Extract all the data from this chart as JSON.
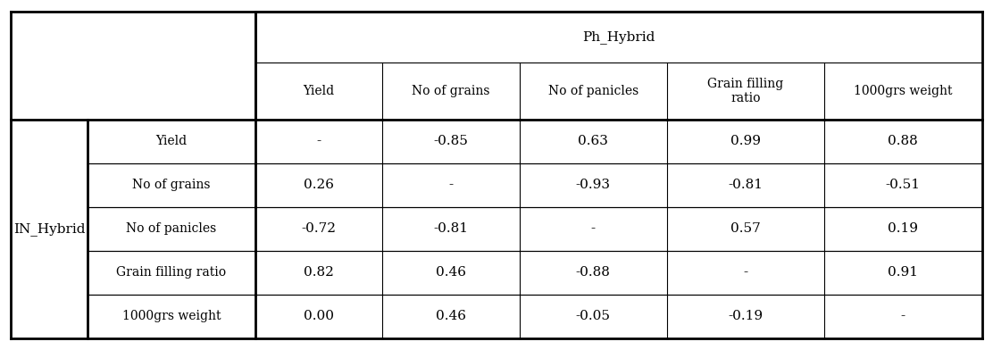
{
  "title_col": "Ph_Hybrid",
  "title_row": "IN_Hybrid",
  "col_headers": [
    "Yield",
    "No of grains",
    "No of panicles",
    "Grain filling\nratio",
    "1000grs weight"
  ],
  "row_headers": [
    "Yield",
    "No of grains",
    "No of panicles",
    "Grain filling ratio",
    "1000grs weight"
  ],
  "cell_data": [
    [
      "-",
      "-0.85",
      "0.63",
      "0.99",
      "0.88"
    ],
    [
      "0.26",
      "-",
      "-0.93",
      "-0.81",
      "-0.51"
    ],
    [
      "-0.72",
      "-0.81",
      "-",
      "0.57",
      "0.19"
    ],
    [
      "0.82",
      "0.46",
      "-0.88",
      "-",
      "0.91"
    ],
    [
      "0.00",
      "0.46",
      "-0.05",
      "-0.19",
      "-"
    ]
  ],
  "bg_color": "#ffffff",
  "border_color": "#000000",
  "text_color": "#000000",
  "fontsize": 11,
  "header_fontsize": 11
}
